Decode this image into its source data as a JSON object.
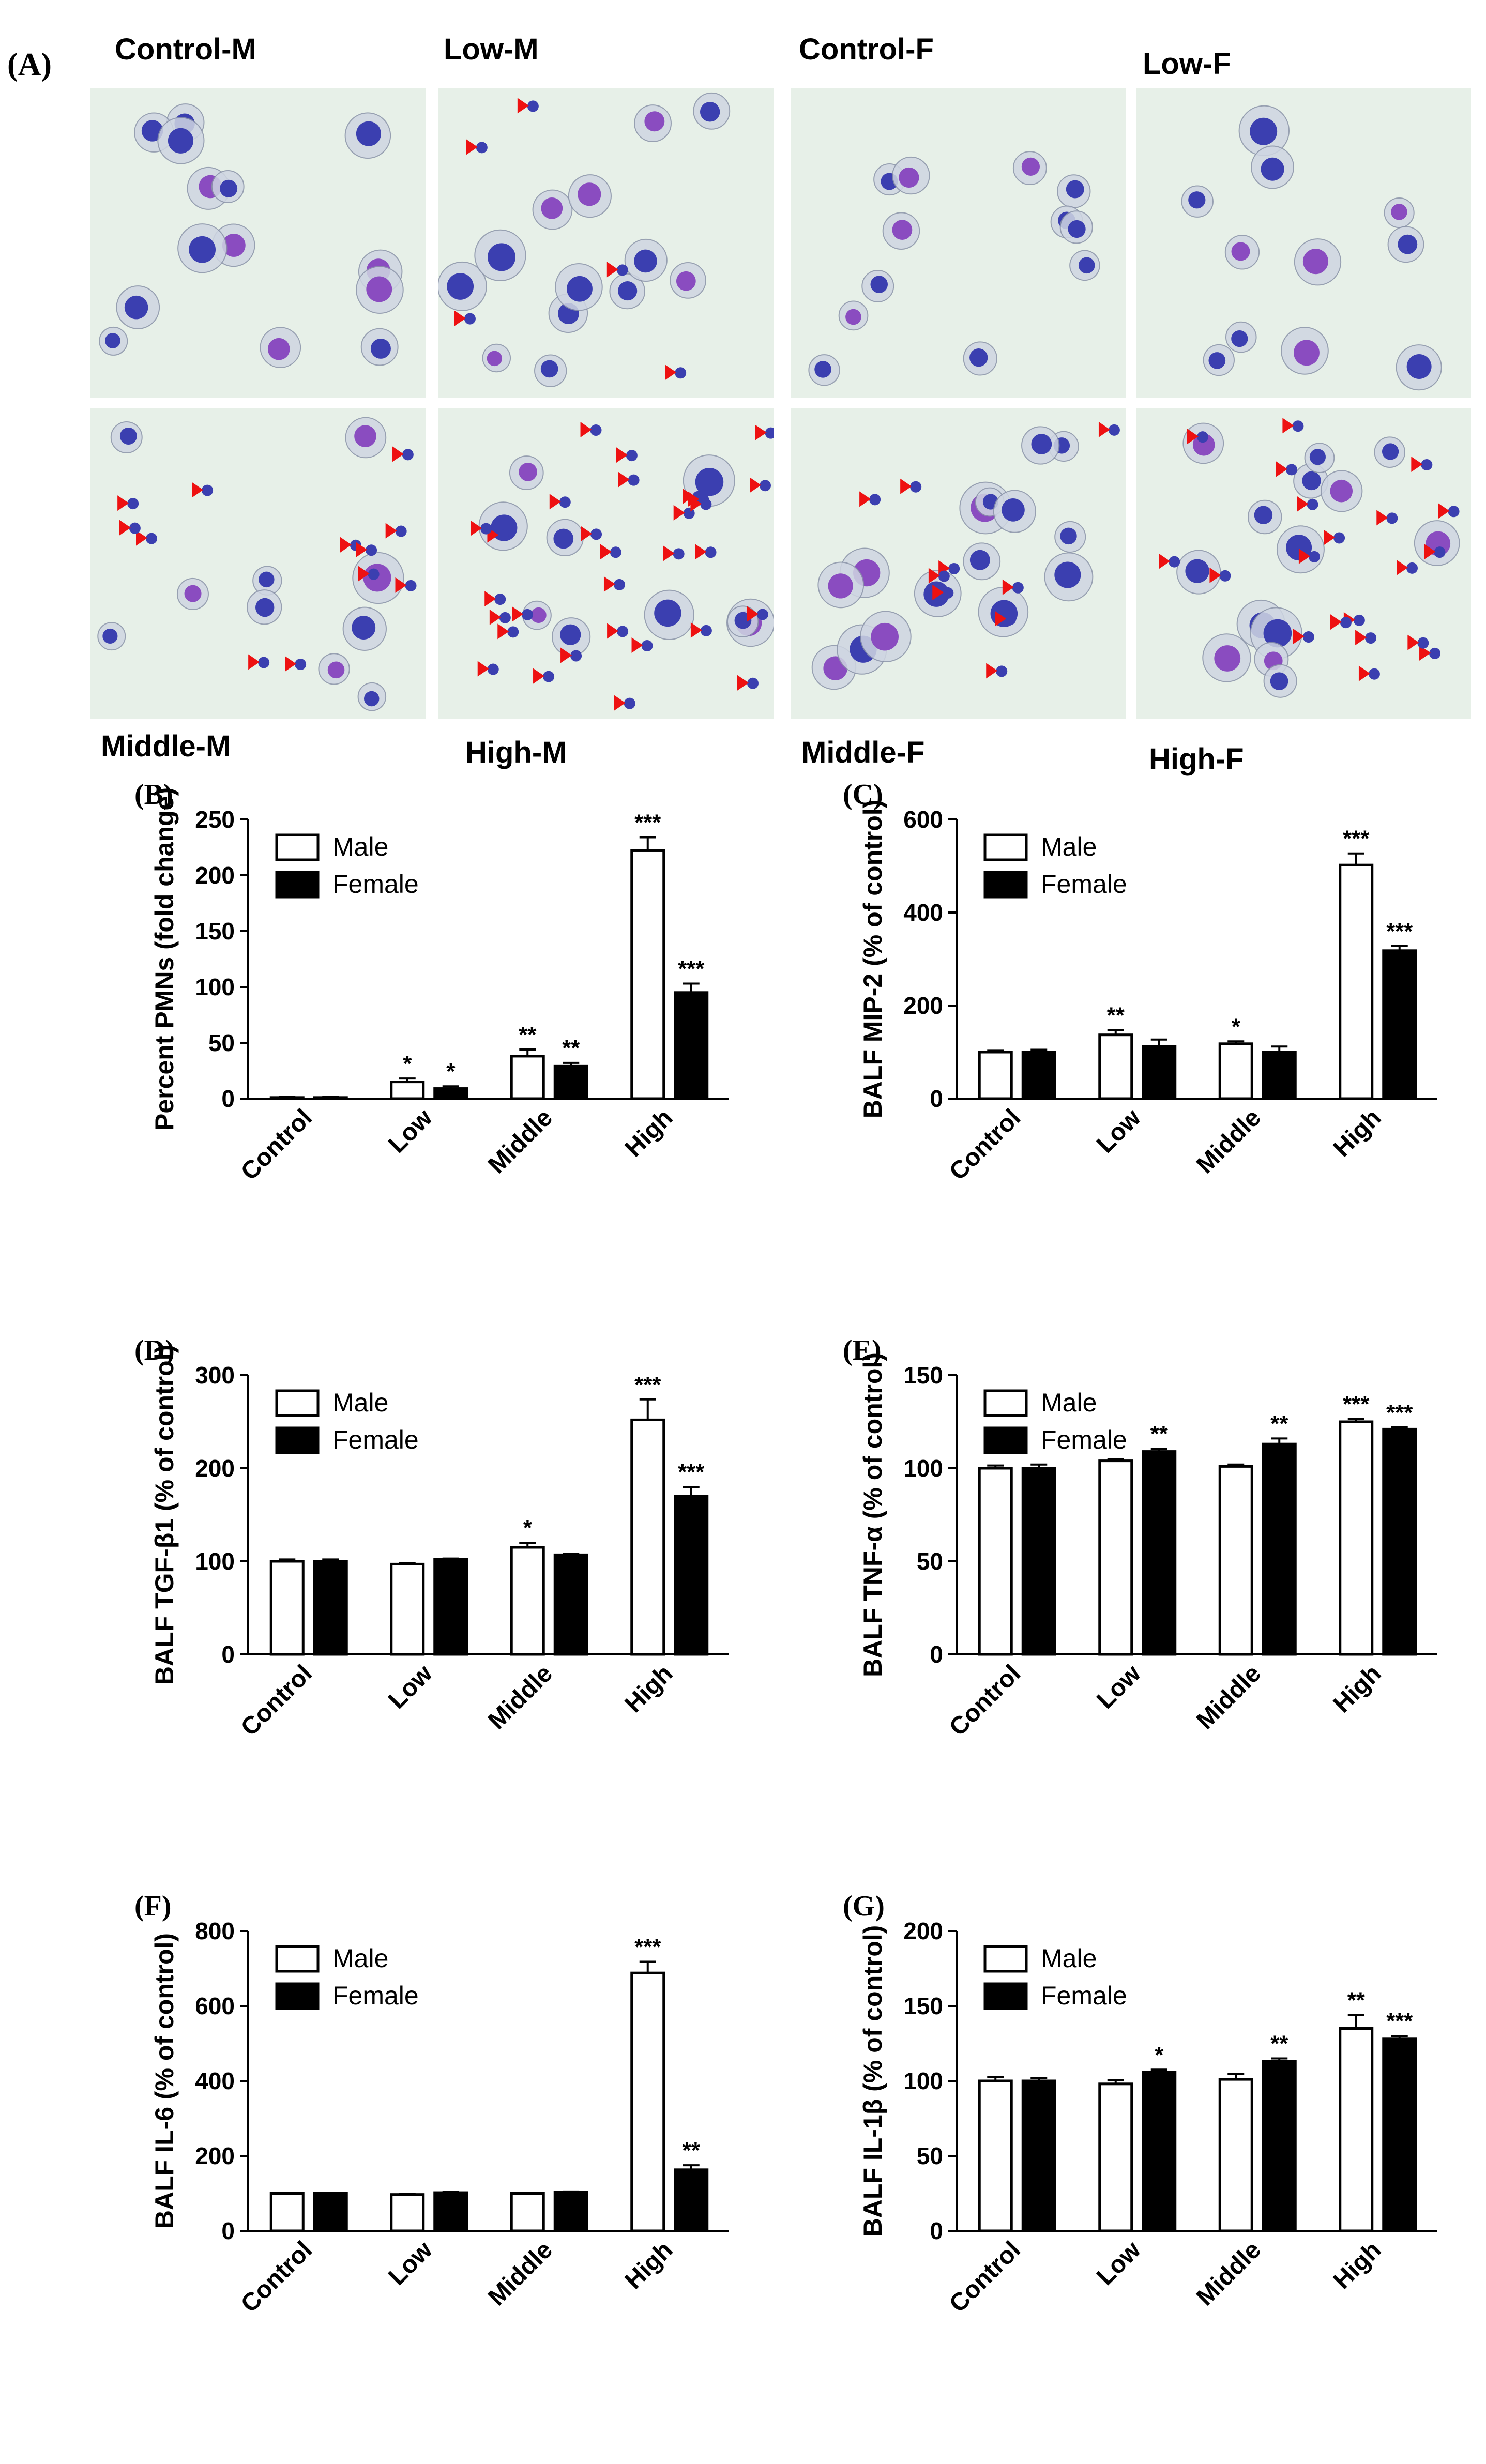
{
  "figure": {
    "panel_a_label": "(A)",
    "micrographs": [
      {
        "id": "cm",
        "label": "Control-M",
        "neutrophil_markers": 0
      },
      {
        "id": "lm",
        "label": "Low-M",
        "neutrophil_markers": 5
      },
      {
        "id": "cf",
        "label": "Control-F",
        "neutrophil_markers": 0
      },
      {
        "id": "lf",
        "label": "Low-F",
        "neutrophil_markers": 0
      },
      {
        "id": "mm",
        "label": "Middle-M",
        "neutrophil_markers": 12
      },
      {
        "id": "hm",
        "label": "High-M",
        "neutrophil_markers": 30
      },
      {
        "id": "mf",
        "label": "Middle-F",
        "neutrophil_markers": 9
      },
      {
        "id": "hf",
        "label": "High-F",
        "neutrophil_markers": 20
      }
    ],
    "marker_color": "#ee1111",
    "nucleus_color": "#3b3fb0",
    "stain_color": "#8a4cc0",
    "background_color": "#e7f0e8"
  },
  "chart_data": [
    {
      "panel": "(B)",
      "type": "bar",
      "ylabel": "Percent PMNs (fold change)",
      "categories": [
        "Control",
        "Low",
        "Middle",
        "High"
      ],
      "ylim": [
        0,
        250
      ],
      "yticks": [
        0,
        50,
        100,
        150,
        200,
        250
      ],
      "legend": [
        "Male",
        "Female"
      ],
      "series": [
        {
          "name": "Male",
          "values": [
            1,
            15,
            38,
            222
          ],
          "errors": [
            0.5,
            3,
            6,
            12
          ],
          "sig": [
            "",
            "*",
            "**",
            "***"
          ]
        },
        {
          "name": "Female",
          "values": [
            1,
            9,
            29,
            95
          ],
          "errors": [
            0.5,
            2,
            3,
            8
          ],
          "sig": [
            "",
            "*",
            "**",
            "***"
          ]
        }
      ]
    },
    {
      "panel": "(C)",
      "type": "bar",
      "ylabel": "BALF MIP-2 (% of control)",
      "categories": [
        "Control",
        "Low",
        "Middle",
        "High"
      ],
      "ylim": [
        0,
        600
      ],
      "yticks": [
        0,
        200,
        400,
        600
      ],
      "legend": [
        "Male",
        "Female"
      ],
      "series": [
        {
          "name": "Male",
          "values": [
            100,
            137,
            118,
            502
          ],
          "errors": [
            4,
            10,
            5,
            25
          ],
          "sig": [
            "",
            "**",
            "*",
            "***"
          ]
        },
        {
          "name": "Female",
          "values": [
            100,
            112,
            100,
            318
          ],
          "errors": [
            5,
            15,
            12,
            10
          ],
          "sig": [
            "",
            "",
            "",
            "***"
          ]
        }
      ]
    },
    {
      "panel": "(D)",
      "type": "bar",
      "ylabel": "BALF TGF-β1 (% of control)",
      "categories": [
        "Control",
        "Low",
        "Middle",
        "High"
      ],
      "ylim": [
        0,
        300
      ],
      "yticks": [
        0,
        100,
        200,
        300
      ],
      "legend": [
        "Male",
        "Female"
      ],
      "series": [
        {
          "name": "Male",
          "values": [
            100,
            97,
            115,
            252
          ],
          "errors": [
            2,
            1,
            5,
            22
          ],
          "sig": [
            "",
            "",
            "*",
            "***"
          ]
        },
        {
          "name": "Female",
          "values": [
            100,
            102,
            107,
            170
          ],
          "errors": [
            2,
            1,
            1,
            10
          ],
          "sig": [
            "",
            "",
            "",
            "***"
          ]
        }
      ]
    },
    {
      "panel": "(E)",
      "type": "bar",
      "ylabel": "BALF TNF-α (% of control)",
      "categories": [
        "Control",
        "Low",
        "Middle",
        "High"
      ],
      "ylim": [
        0,
        150
      ],
      "yticks": [
        0,
        50,
        100,
        150
      ],
      "legend": [
        "Male",
        "Female"
      ],
      "series": [
        {
          "name": "Male",
          "values": [
            100,
            104,
            101,
            125
          ],
          "errors": [
            1.5,
            1,
            1,
            1.5
          ],
          "sig": [
            "",
            "",
            "",
            "***"
          ]
        },
        {
          "name": "Female",
          "values": [
            100,
            109,
            113,
            121
          ],
          "errors": [
            2,
            1.5,
            3,
            1
          ],
          "sig": [
            "",
            "**",
            "**",
            "***"
          ]
        }
      ]
    },
    {
      "panel": "(F)",
      "type": "bar",
      "ylabel": "BALF IL-6  (% of control)",
      "categories": [
        "Control",
        "Low",
        "Middle",
        "High"
      ],
      "ylim": [
        0,
        800
      ],
      "yticks": [
        0,
        200,
        400,
        600,
        800
      ],
      "legend": [
        "Male",
        "Female"
      ],
      "series": [
        {
          "name": "Male",
          "values": [
            100,
            97,
            100,
            688
          ],
          "errors": [
            2,
            2,
            2,
            30
          ],
          "sig": [
            "",
            "",
            "",
            "***"
          ]
        },
        {
          "name": "Female",
          "values": [
            100,
            102,
            103,
            163
          ],
          "errors": [
            2,
            2,
            2,
            12
          ],
          "sig": [
            "",
            "",
            "",
            "**"
          ]
        }
      ]
    },
    {
      "panel": "(G)",
      "type": "bar",
      "ylabel": "BALF IL-1β (% of control)",
      "categories": [
        "Control",
        "Low",
        "Middle",
        "High"
      ],
      "ylim": [
        0,
        200
      ],
      "yticks": [
        0,
        50,
        100,
        150,
        200
      ],
      "legend": [
        "Male",
        "Female"
      ],
      "series": [
        {
          "name": "Male",
          "values": [
            100,
            98,
            101,
            135
          ],
          "errors": [
            2.5,
            2.5,
            3.5,
            9
          ],
          "sig": [
            "",
            "",
            "",
            "**"
          ]
        },
        {
          "name": "Female",
          "values": [
            100,
            106,
            113,
            128
          ],
          "errors": [
            2,
            1.5,
            2,
            2
          ],
          "sig": [
            "",
            "*",
            "**",
            "***"
          ]
        }
      ]
    }
  ]
}
